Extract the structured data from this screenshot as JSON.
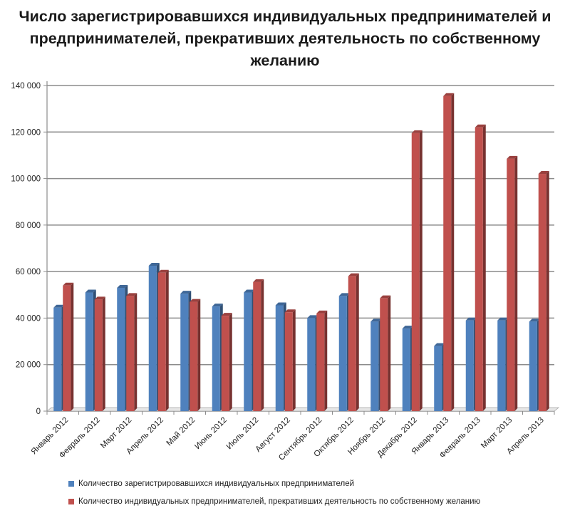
{
  "chart_data": {
    "type": "bar",
    "title_lines": [
      "Число зарегистрировавшихся индивидуальных предпринимателей и",
      "предпринимателей, прекративших деятельность по собственному",
      "желанию"
    ],
    "categories": [
      "Январь 2012",
      "Февраль 2012",
      "Март 2012",
      "Апрель 2012",
      "Май 2012",
      "Июнь 2012",
      "Июль 2012",
      "Август 2012",
      "Сентябрь 2012",
      "Октябрь 2012",
      "Ноябрь 2012",
      "Декабрь 2012",
      "Январь 2013",
      "Февраль 2013",
      "Март 2013",
      "Апрель 2013"
    ],
    "series": [
      {
        "name": "Количество зарегистрировавшихся индивидуальных предпринимателей",
        "color": "#4f81bd",
        "values": [
          44500,
          51000,
          53000,
          62500,
          50500,
          45000,
          51000,
          45500,
          40000,
          49500,
          38500,
          35500,
          28000,
          39000,
          39000,
          38500
        ]
      },
      {
        "name": "Количество индивидуальных предпринимателей, прекративших деятельность по собственному желанию",
        "color": "#c0504d",
        "values": [
          54000,
          48000,
          49500,
          59500,
          47000,
          41000,
          55500,
          42500,
          42000,
          58000,
          48500,
          119500,
          135500,
          122000,
          108500,
          102000
        ]
      }
    ],
    "y_ticks": [
      "0",
      "20 000",
      "40 000",
      "60 000",
      "80 000",
      "100 000",
      "120 000",
      "140 000"
    ],
    "ylim": [
      0,
      140000
    ],
    "xlabel": "",
    "ylabel": "",
    "grid": true,
    "legend_position": "bottom"
  }
}
